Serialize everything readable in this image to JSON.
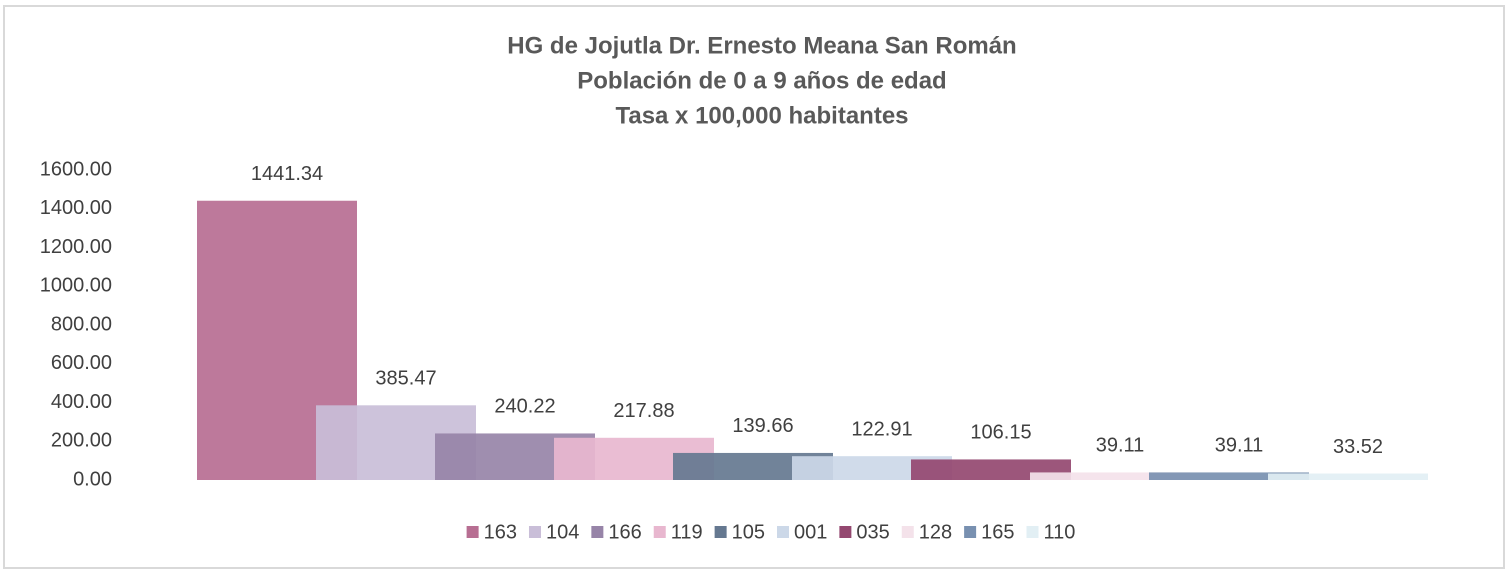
{
  "chart_data": {
    "type": "bar",
    "title": [
      "HG de Jojutla Dr. Ernesto Meana San Román",
      "Población de 0 a 9 años de edad",
      "Tasa x 100,000 habitantes"
    ],
    "categories": [
      null
    ],
    "series": [
      {
        "name": "163",
        "color": "#b76e92",
        "values": [
          1441.34
        ]
      },
      {
        "name": "104",
        "color": "#c9bed8",
        "values": [
          385.47
        ]
      },
      {
        "name": "166",
        "color": "#9784a8",
        "values": [
          240.22
        ]
      },
      {
        "name": "119",
        "color": "#e8b7cf",
        "values": [
          217.88
        ]
      },
      {
        "name": "105",
        "color": "#657890",
        "values": [
          139.66
        ]
      },
      {
        "name": "001",
        "color": "#ccd8e8",
        "values": [
          122.91
        ]
      },
      {
        "name": "035",
        "color": "#944870",
        "values": [
          106.15
        ]
      },
      {
        "name": "128",
        "color": "#f4e2ea",
        "values": [
          39.11
        ]
      },
      {
        "name": "165",
        "color": "#7890b0",
        "values": [
          39.11
        ]
      },
      {
        "name": "110",
        "color": "#e2eff4",
        "values": [
          33.52
        ]
      }
    ],
    "ylim": [
      0,
      1600
    ],
    "yticks": [
      {
        "value": 0,
        "label": "0.00"
      },
      {
        "value": 200,
        "label": "200.00"
      },
      {
        "value": 400,
        "label": "400.00"
      },
      {
        "value": 600,
        "label": "600.00"
      },
      {
        "value": 800,
        "label": "800.00"
      },
      {
        "value": 1000,
        "label": "1000.00"
      },
      {
        "value": 1200,
        "label": "1200.00"
      },
      {
        "value": 1400,
        "label": "1400.00"
      },
      {
        "value": 1600,
        "label": "1600.00"
      }
    ],
    "grid": false,
    "legend": "bottom"
  }
}
